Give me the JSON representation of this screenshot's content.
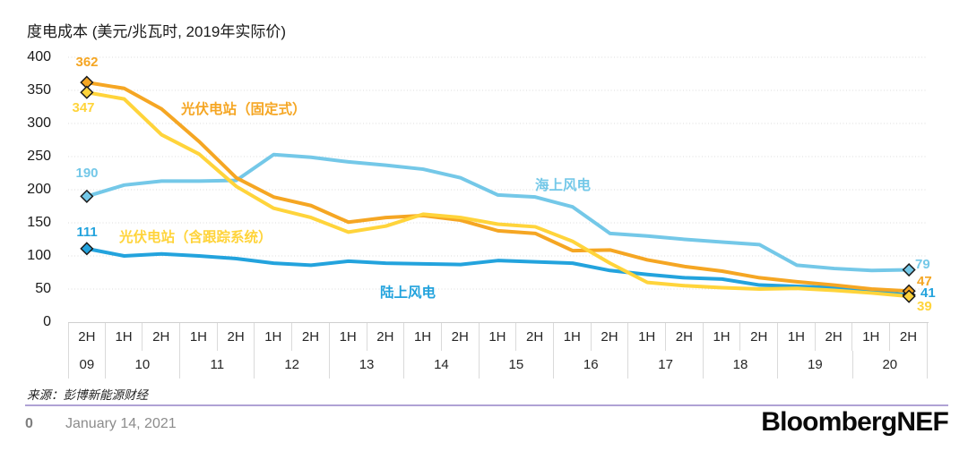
{
  "page": {
    "title": "度电成本 (美元/兆瓦时, 2019年实际价)",
    "source_note": "来源：彭博新能源财经",
    "footer": {
      "page_number": "0",
      "date": "January 14, 2021",
      "brand": "BloombergNEF"
    }
  },
  "chart_data": {
    "type": "line",
    "title": "度电成本 (美元/兆瓦时, 2019年实际价)",
    "unit": "美元/兆瓦时 (2019年实际价)",
    "ylim": [
      0,
      400
    ],
    "ytick_step": 50,
    "yticks": [
      "400",
      "350",
      "300",
      "250",
      "200",
      "150",
      "100",
      "50",
      "0"
    ],
    "grid": true,
    "legend_position": "inline-labels",
    "categories": [
      "2H 09",
      "1H 10",
      "2H 10",
      "1H 11",
      "2H 11",
      "1H 12",
      "2H 12",
      "1H 13",
      "2H 13",
      "1H 14",
      "2H 14",
      "1H 15",
      "2H 15",
      "1H 16",
      "2H 16",
      "1H 17",
      "2H 17",
      "1H 18",
      "2H 18",
      "1H 19",
      "2H 19",
      "1H 20",
      "2H 20"
    ],
    "x_axis": {
      "halves": [
        "2H",
        "1H",
        "2H",
        "1H",
        "2H",
        "1H",
        "2H",
        "1H",
        "2H",
        "1H",
        "2H",
        "1H",
        "2H",
        "1H",
        "2H",
        "1H",
        "2H",
        "1H",
        "2H",
        "1H",
        "2H",
        "1H",
        "2H"
      ],
      "years": [
        {
          "label": "09",
          "span": 1
        },
        {
          "label": "10",
          "span": 2
        },
        {
          "label": "11",
          "span": 2
        },
        {
          "label": "12",
          "span": 2
        },
        {
          "label": "13",
          "span": 2
        },
        {
          "label": "14",
          "span": 2
        },
        {
          "label": "15",
          "span": 2
        },
        {
          "label": "16",
          "span": 2
        },
        {
          "label": "17",
          "span": 2
        },
        {
          "label": "18",
          "span": 2
        },
        {
          "label": "19",
          "span": 2
        },
        {
          "label": "20",
          "span": 2
        }
      ]
    },
    "series": [
      {
        "id": "pv_fixed",
        "name": "光伏电站（固定式）",
        "color": "#F5A623",
        "z": 2,
        "start_label": "362",
        "end_label": "47",
        "values": [
          362,
          353,
          322,
          273,
          218,
          189,
          176,
          151,
          158,
          161,
          154,
          138,
          134,
          108,
          109,
          94,
          84,
          77,
          67,
          61,
          56,
          50,
          47
        ]
      },
      {
        "id": "pv_tracking",
        "name": "光伏电站（含跟踪系统）",
        "color": "#FFD43B",
        "z": 3,
        "start_label": "347",
        "end_label": "39",
        "values": [
          347,
          337,
          283,
          254,
          205,
          172,
          158,
          136,
          145,
          163,
          158,
          148,
          144,
          122,
          89,
          60,
          55,
          52,
          50,
          51,
          48,
          44,
          39
        ]
      },
      {
        "id": "offshore_wind",
        "name": "海上风电",
        "color": "#74C8E8",
        "z": 0,
        "start_label": "190",
        "end_label": "79",
        "values": [
          190,
          207,
          213,
          213,
          214,
          253,
          249,
          242,
          237,
          231,
          218,
          192,
          189,
          174,
          134,
          130,
          125,
          121,
          117,
          86,
          81,
          78,
          79
        ]
      },
      {
        "id": "onshore_wind",
        "name": "陆上风电",
        "color": "#23A3DD",
        "z": 1,
        "start_label": "111",
        "end_label": "41",
        "values": [
          111,
          100,
          103,
          100,
          96,
          89,
          86,
          92,
          89,
          88,
          87,
          93,
          91,
          89,
          78,
          72,
          67,
          65,
          56,
          54,
          52,
          46,
          41
        ]
      }
    ]
  }
}
